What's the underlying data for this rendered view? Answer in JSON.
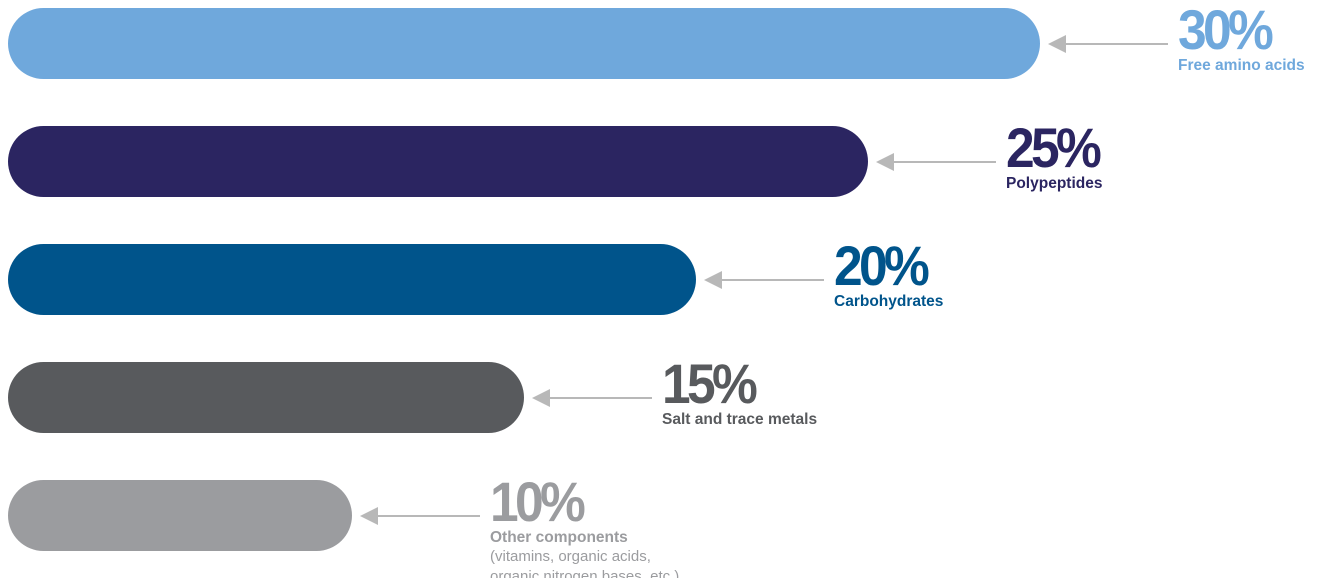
{
  "chart_data": {
    "type": "bar",
    "orientation": "horizontal",
    "unit": "%",
    "max": 30,
    "categories": [
      "Free amino acids",
      "Polypeptides",
      "Carbohydrates",
      "Salt and trace metals",
      "Other components"
    ],
    "values": [
      30,
      25,
      20,
      15,
      10
    ],
    "value_labels": [
      "30%",
      "25%",
      "20%",
      "15%",
      "10%"
    ],
    "notes": [
      [],
      [],
      [],
      [],
      [
        "(vitamins, organic acids,",
        "organic nitrogen bases, etc.)"
      ]
    ],
    "colors": [
      "#6fa8dc",
      "#2b2561",
      "#00548b",
      "#585a5d",
      "#9b9c9f"
    ],
    "label_colors": [
      "#6fa8dc",
      "#2b2561",
      "#00548b",
      "#585a5d",
      "#9b9c9f"
    ],
    "arrow_color": "#b8b8b8",
    "grid": false,
    "legend": "none"
  }
}
